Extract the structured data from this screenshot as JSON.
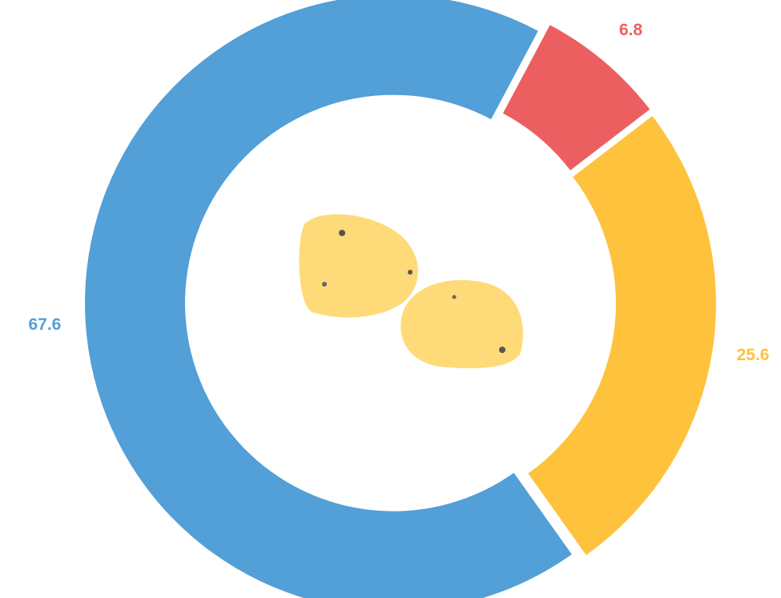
{
  "chart_data": {
    "type": "donut",
    "values": [
      6.8,
      25.6,
      67.6
    ],
    "colors": [
      "#eb5f61",
      "#ffc23d",
      "#539fd7"
    ]
  }
}
